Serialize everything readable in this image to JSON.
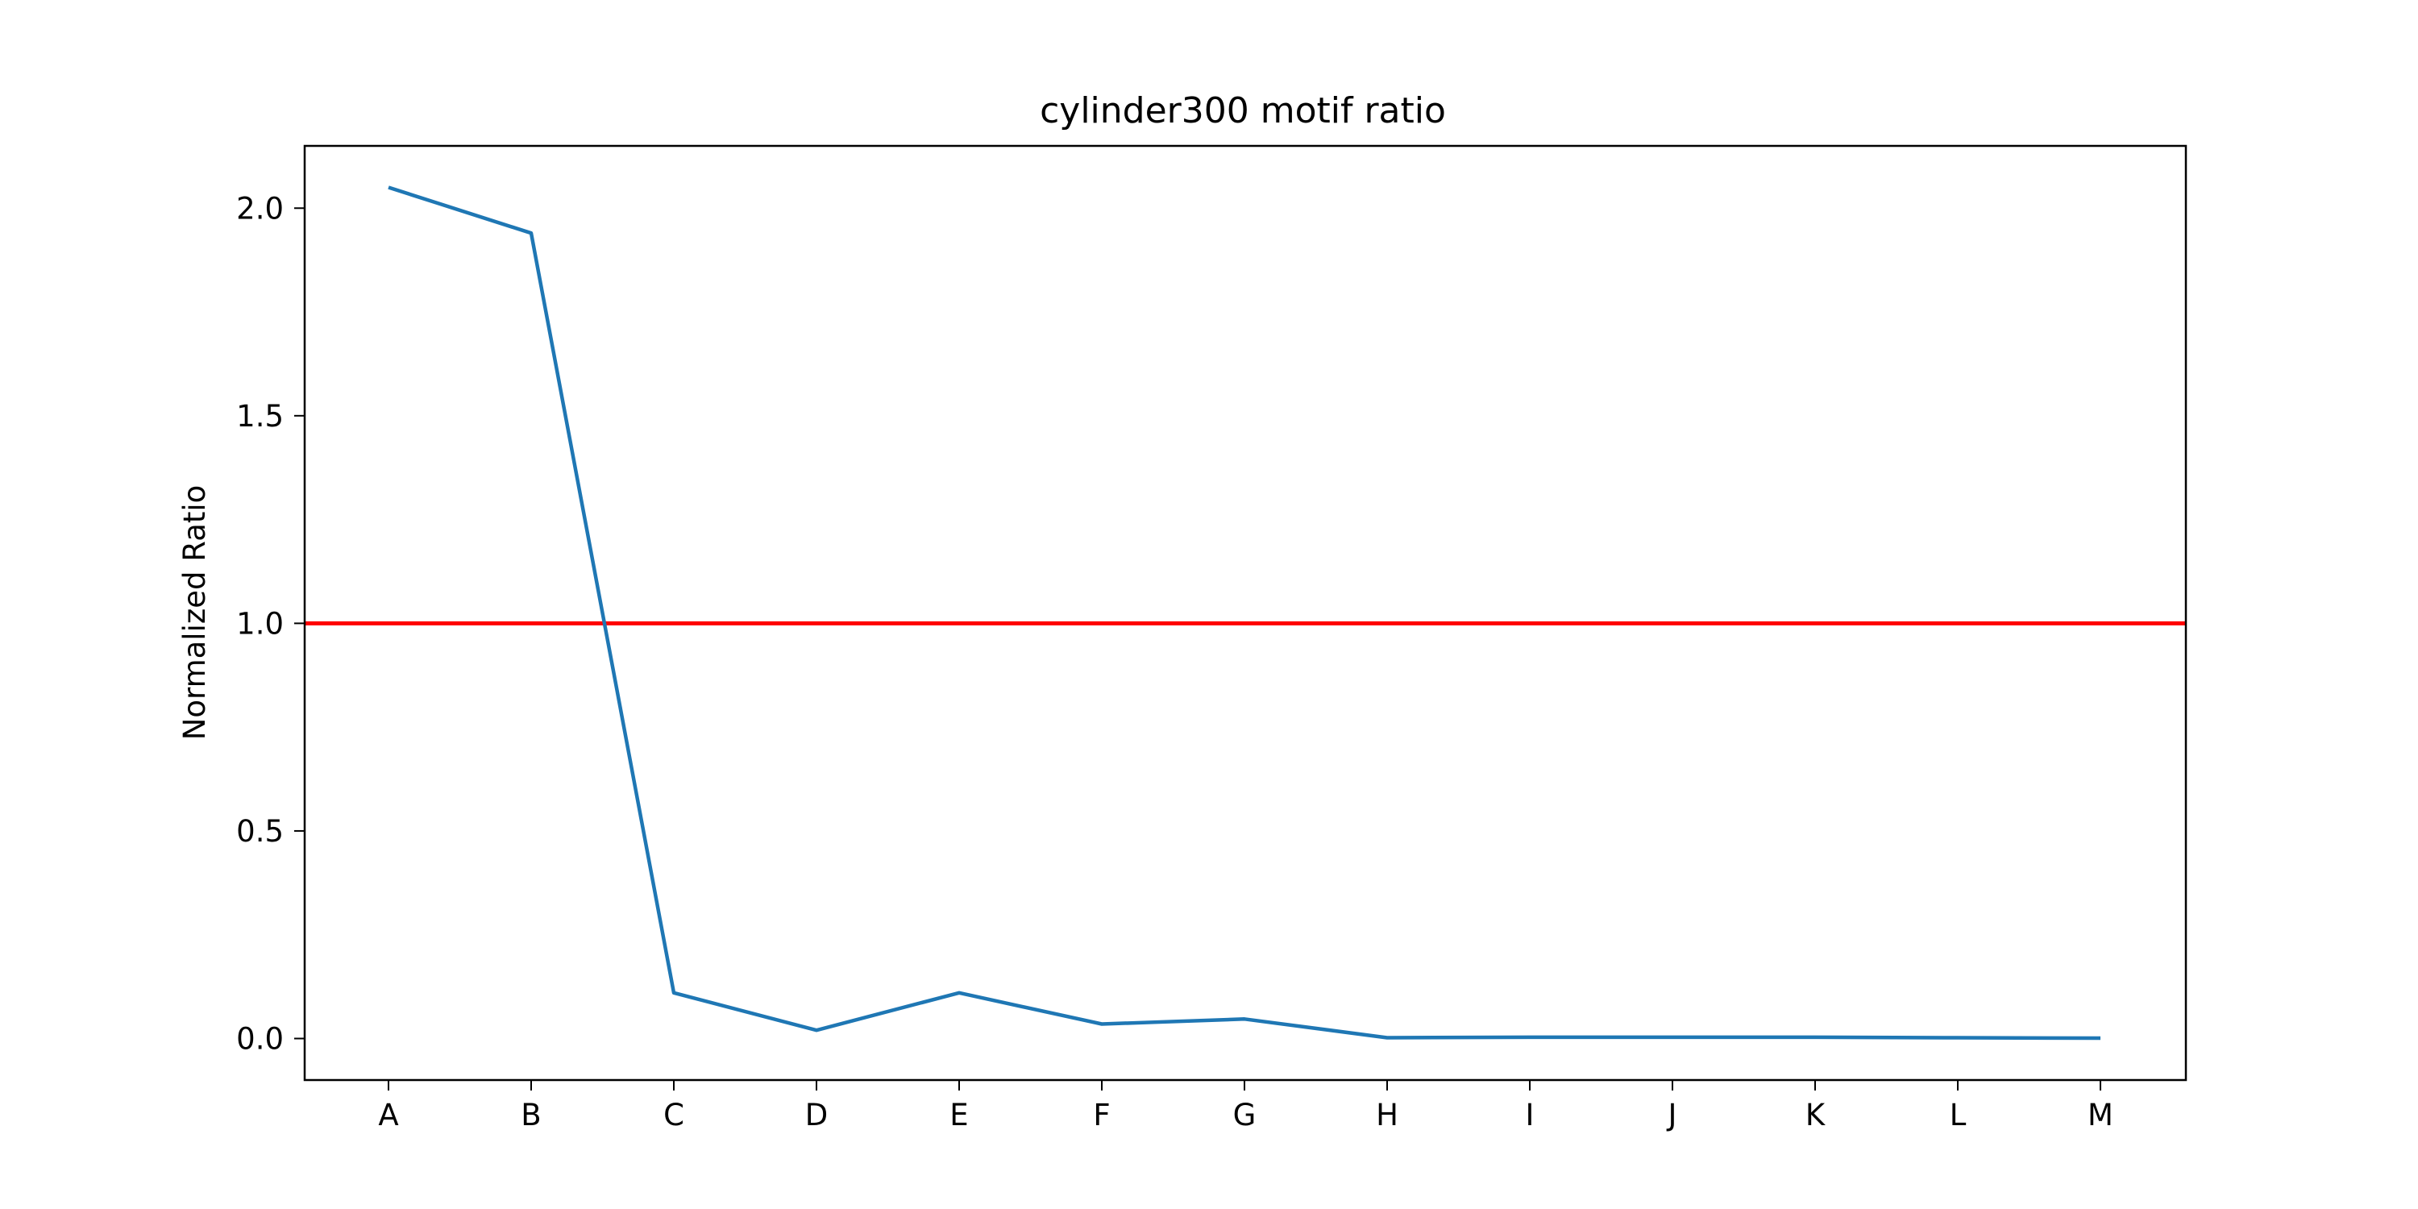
{
  "chart_data": {
    "type": "line",
    "title": "cylinder300 motif ratio",
    "xlabel": "",
    "ylabel": "Normalized Ratio",
    "categories": [
      "A",
      "B",
      "C",
      "D",
      "E",
      "F",
      "G",
      "H",
      "I",
      "J",
      "K",
      "L",
      "M"
    ],
    "series": [
      {
        "name": "cylinder300",
        "color": "#1f77b4",
        "values": [
          2.05,
          1.94,
          0.11,
          0.02,
          0.11,
          0.035,
          0.047,
          0.002,
          0.003,
          0.003,
          0.003,
          0.002,
          0.001
        ]
      }
    ],
    "reference_line": {
      "y": 1.0,
      "color": "#ff0000"
    },
    "ylim": [
      -0.1,
      2.15
    ],
    "yticks": [
      0.0,
      0.5,
      1.0,
      1.5,
      2.0
    ],
    "ytick_labels": [
      "0.0",
      "0.5",
      "1.0",
      "1.5",
      "2.0"
    ],
    "grid": false
  }
}
